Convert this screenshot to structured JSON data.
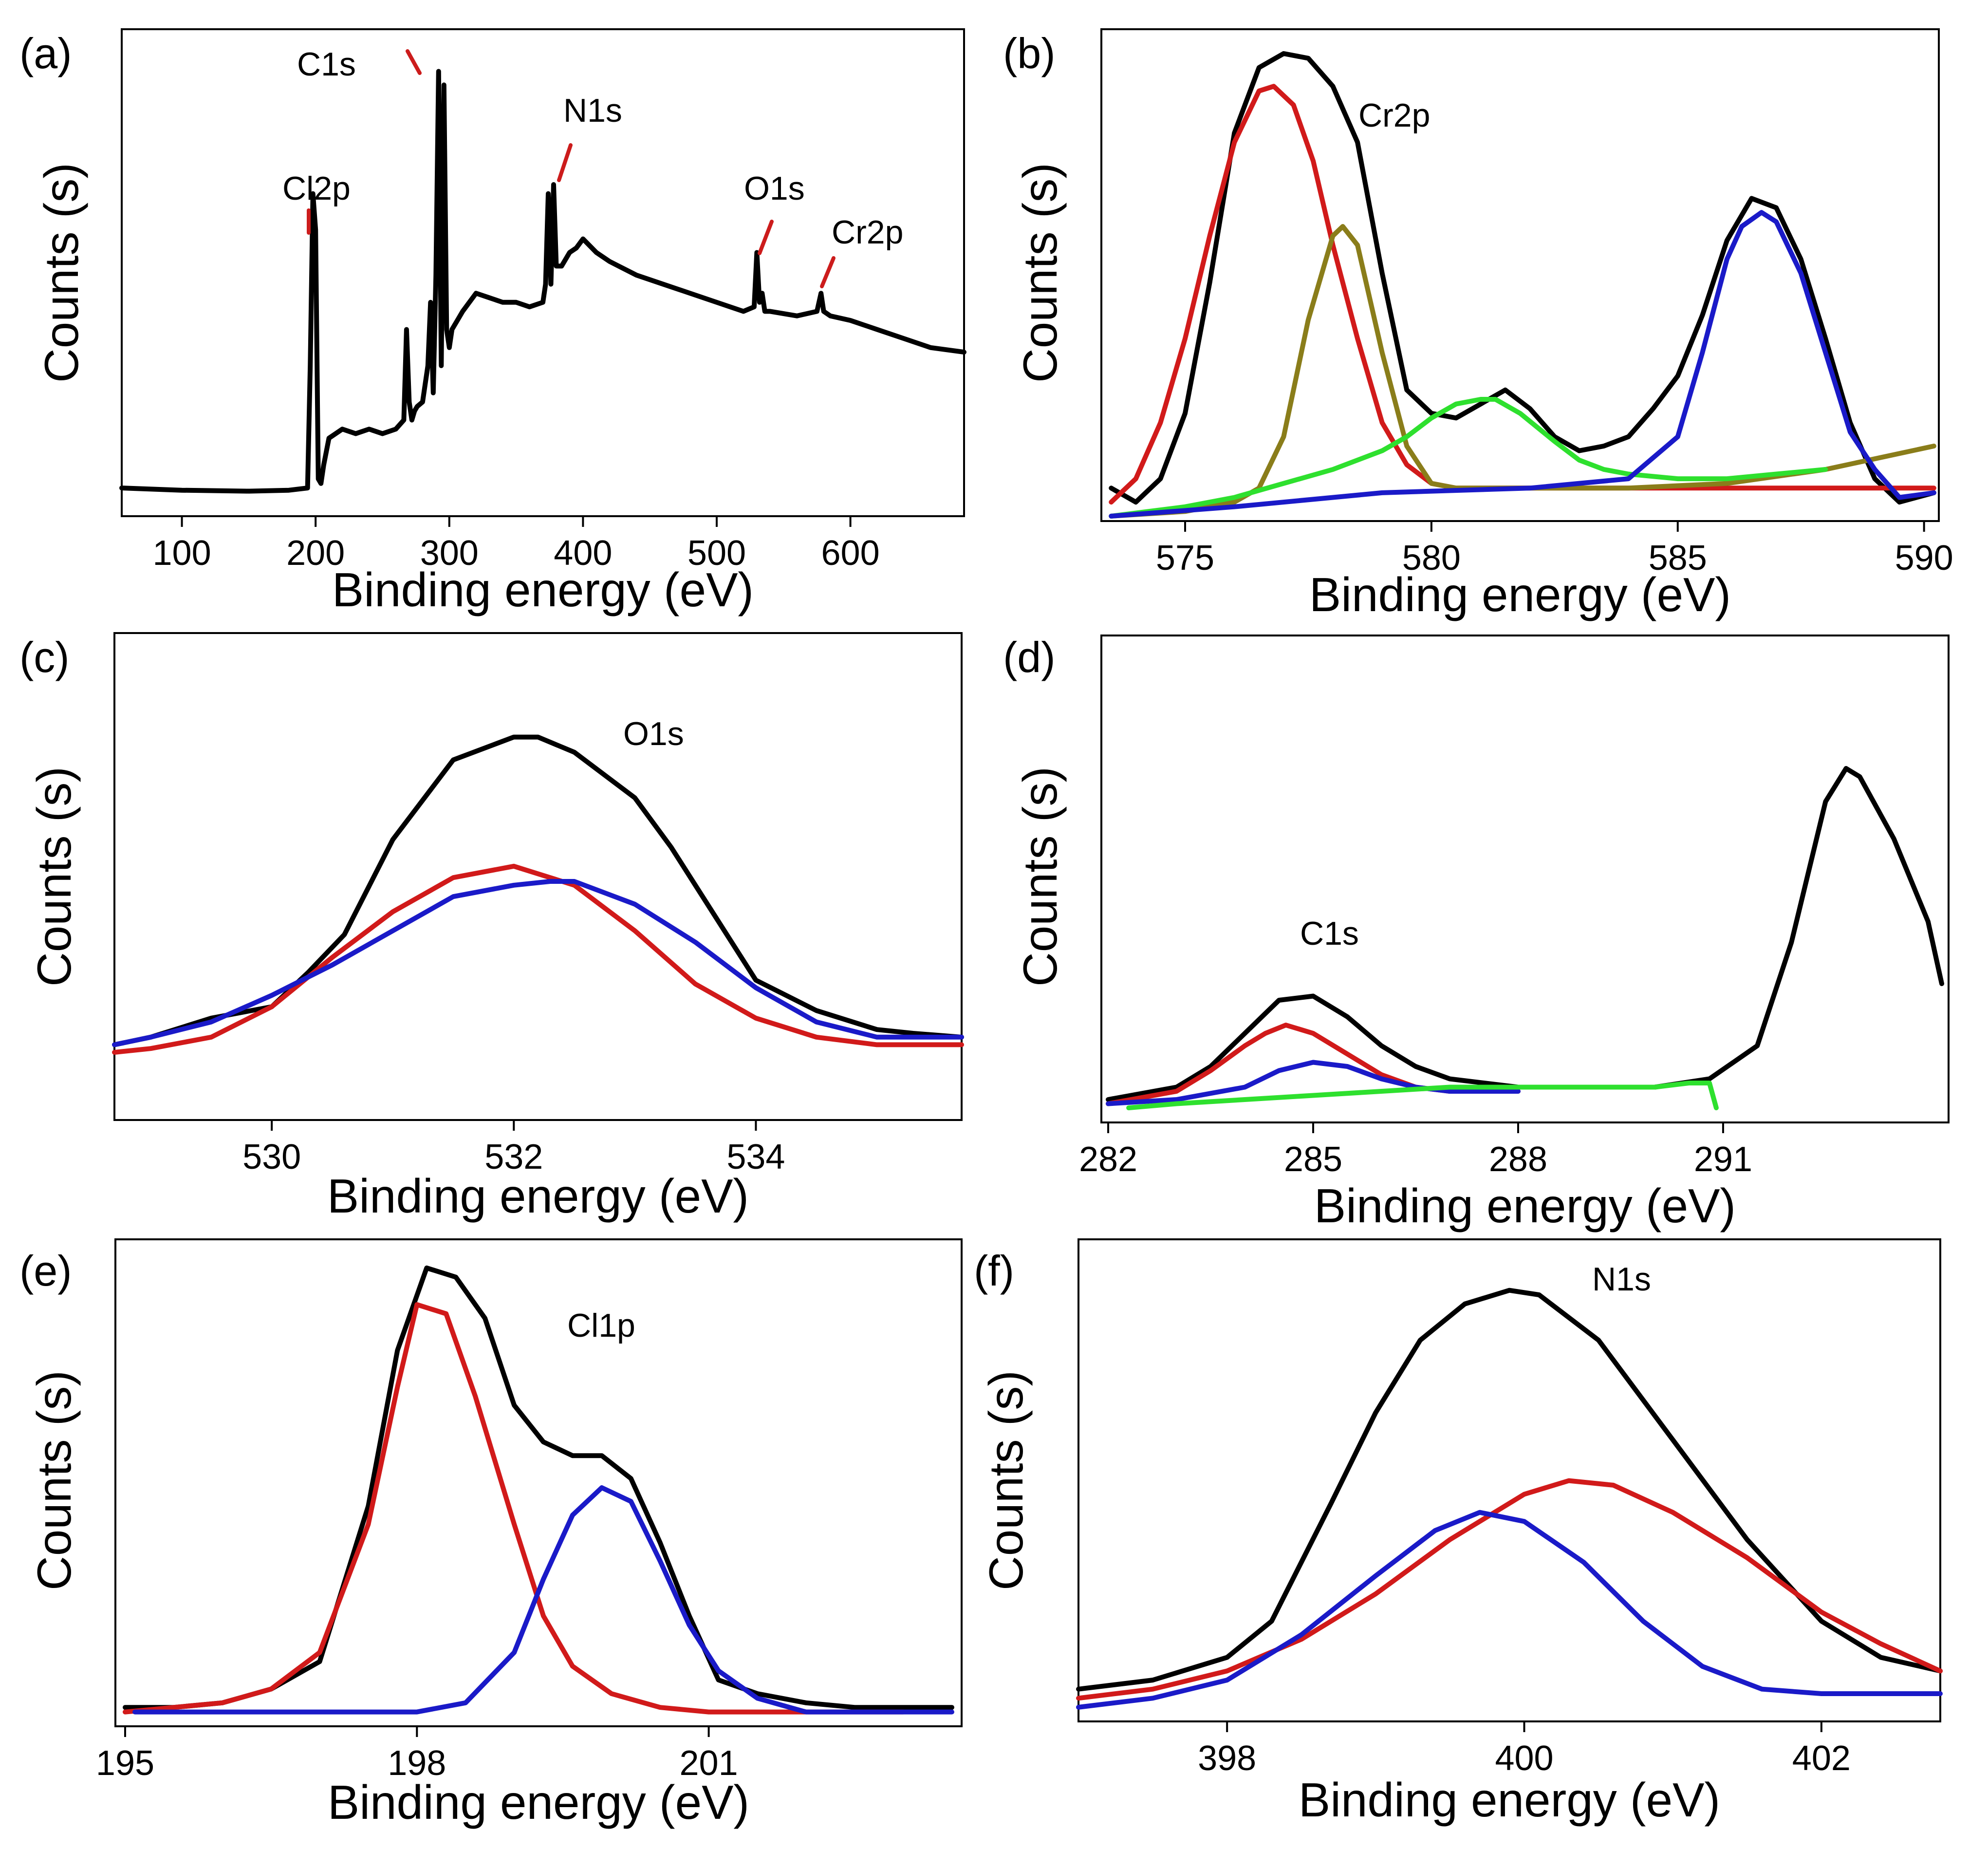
{
  "figure": {
    "axis_color": "#000000"
  },
  "chart_data": [
    {
      "id": "a",
      "type": "line",
      "panel_label": "(a)",
      "title": "",
      "xlabel": "Binding energy (eV)",
      "ylabel": "Counts (s)",
      "xlim": [
        55,
        685
      ],
      "ylim": [
        0,
        100
      ],
      "xticks": [
        100,
        200,
        300,
        400,
        500,
        600
      ],
      "xtick_labels": [
        "100",
        "200",
        "300",
        "400",
        "500",
        "600"
      ],
      "series": [
        {
          "name": "survey",
          "color": "#000000",
          "x": [
            55,
            100,
            150,
            180,
            194,
            196,
            198,
            200,
            202,
            204,
            206,
            210,
            220,
            230,
            240,
            250,
            260,
            266,
            268,
            270,
            272,
            274,
            276,
            280,
            284,
            286,
            288,
            290,
            292,
            294,
            296,
            298,
            300,
            302,
            306,
            310,
            320,
            330,
            340,
            350,
            360,
            370,
            372,
            374,
            376,
            378,
            380,
            384,
            390,
            395,
            400,
            410,
            420,
            440,
            460,
            480,
            500,
            520,
            528,
            530,
            532,
            534,
            536,
            540,
            560,
            575,
            578,
            580,
            585,
            600,
            620,
            640,
            660,
            685
          ],
          "y": [
            3,
            2.5,
            2.3,
            2.5,
            3,
            30,
            68,
            60,
            5,
            4,
            8,
            14,
            16,
            15,
            16,
            15,
            16,
            18,
            38,
            22,
            18,
            20,
            21,
            22,
            30,
            44,
            24,
            50,
            95,
            30,
            92,
            38,
            34,
            38,
            40,
            42,
            46,
            45,
            44,
            44,
            43,
            44,
            48,
            68,
            48,
            70,
            52,
            52,
            55,
            56,
            58,
            55,
            53,
            50,
            48,
            46,
            44,
            42,
            43,
            55,
            44,
            46,
            42,
            42,
            41,
            42,
            46,
            42,
            41,
            40,
            38,
            36,
            34,
            33
          ]
        }
      ],
      "annotations": [
        "Cl2p",
        "C1s",
        "N1s",
        "O1s",
        "Cr2p"
      ]
    },
    {
      "id": "b",
      "type": "line",
      "panel_label": "(b)",
      "title": "",
      "xlabel": "Binding energy (eV)",
      "ylabel": "Counts (s)",
      "xlim": [
        573.3,
        590.3
      ],
      "ylim": [
        0,
        100
      ],
      "xticks": [
        575,
        580,
        585,
        590
      ],
      "xtick_labels": [
        "575",
        "580",
        "585",
        "590"
      ],
      "series": [
        {
          "name": "raw",
          "color": "#000000",
          "x": [
            573.5,
            574,
            574.5,
            575,
            575.5,
            576,
            576.5,
            577,
            577.5,
            578,
            578.5,
            579,
            579.5,
            580,
            580.5,
            581,
            581.5,
            582,
            582.5,
            583,
            583.5,
            584,
            584.5,
            585,
            585.5,
            586,
            586.5,
            587,
            587.5,
            588,
            588.5,
            589,
            589.5,
            590.2
          ],
          "y": [
            6,
            3,
            8,
            22,
            50,
            82,
            96,
            99,
            98,
            92,
            80,
            52,
            27,
            22,
            21,
            24,
            27,
            23,
            17,
            14,
            15,
            17,
            23,
            30,
            43,
            59,
            68,
            66,
            55,
            38,
            20,
            8,
            3,
            5
          ]
        },
        {
          "name": "fit-1",
          "color": "#d11a1a",
          "x": [
            573.5,
            574,
            574.5,
            575,
            575.5,
            576,
            576.5,
            576.8,
            577.2,
            577.6,
            578,
            578.5,
            579,
            579.5,
            580,
            580.5,
            581,
            582,
            584,
            586,
            588,
            590.2
          ],
          "y": [
            3,
            8,
            20,
            38,
            60,
            80,
            91,
            92,
            88,
            76,
            58,
            38,
            20,
            11,
            7,
            6,
            6,
            6,
            6,
            6,
            6,
            6
          ]
        },
        {
          "name": "fit-2",
          "color": "#8a7d1a",
          "x": [
            573.5,
            575,
            576,
            576.5,
            577,
            577.5,
            578,
            578.2,
            578.5,
            579,
            579.5,
            580,
            580.5,
            581,
            582,
            584,
            586,
            588,
            590.2
          ],
          "y": [
            0,
            1,
            3,
            6,
            17,
            42,
            60,
            62,
            58,
            35,
            15,
            7,
            6,
            6,
            6,
            6,
            7,
            10,
            15
          ]
        },
        {
          "name": "fit-3",
          "color": "#2ee02e",
          "x": [
            573.5,
            575,
            576,
            577,
            578,
            579,
            579.5,
            580,
            580.5,
            581,
            581.3,
            581.8,
            582.5,
            583,
            583.5,
            584,
            585,
            586,
            587,
            588
          ],
          "y": [
            0,
            2,
            4,
            7,
            10,
            14,
            17,
            21,
            24,
            25,
            25,
            22,
            16,
            12,
            10,
            9,
            8,
            8,
            9,
            10
          ]
        },
        {
          "name": "fit-4",
          "color": "#1a1ac8",
          "x": [
            573.5,
            576,
            579,
            582,
            584,
            585,
            585.5,
            586,
            586.3,
            586.7,
            587,
            587.5,
            588,
            588.5,
            589,
            589.5,
            590.2
          ],
          "y": [
            0,
            2,
            5,
            6,
            8,
            17,
            35,
            55,
            62,
            65,
            63,
            52,
            35,
            18,
            10,
            4,
            5
          ]
        }
      ],
      "annotations": [
        "Cr2p"
      ]
    },
    {
      "id": "c",
      "type": "line",
      "panel_label": "(c)",
      "title": "",
      "xlabel": "Binding energy (eV)",
      "ylabel": "Counts (s)",
      "xlim": [
        528.7,
        535.7
      ],
      "ylim": [
        0,
        100
      ],
      "xticks": [
        530,
        532,
        534
      ],
      "xtick_labels": [
        "530",
        "532",
        "534"
      ],
      "series": [
        {
          "name": "raw",
          "color": "#000000",
          "x": [
            528.7,
            529,
            529.5,
            530,
            530.3,
            530.6,
            531,
            531.5,
            532,
            532.2,
            532.5,
            533,
            533.3,
            533.6,
            534,
            534.5,
            535,
            535.3,
            535.7
          ],
          "y": [
            7,
            9,
            14,
            17,
            26,
            36,
            61,
            82,
            88,
            88,
            84,
            72,
            59,
            44,
            24,
            16,
            11,
            10,
            9
          ]
        },
        {
          "name": "fit-1",
          "color": "#d11a1a",
          "x": [
            528.7,
            529,
            529.5,
            530,
            530.5,
            531,
            531.5,
            532,
            532.5,
            533,
            533.5,
            534,
            534.5,
            535,
            535.7
          ],
          "y": [
            5,
            6,
            9,
            17,
            30,
            42,
            51,
            54,
            49,
            37,
            23,
            14,
            9,
            7,
            7
          ]
        },
        {
          "name": "fit-2",
          "color": "#1a1ac8",
          "x": [
            528.7,
            529,
            529.5,
            530,
            530.5,
            531,
            531.5,
            532,
            532.3,
            532.5,
            533,
            533.5,
            534,
            534.5,
            535,
            535.7
          ],
          "y": [
            7,
            9,
            13,
            20,
            28,
            37,
            46,
            49,
            50,
            50,
            44,
            34,
            22,
            13,
            9,
            9
          ]
        }
      ],
      "annotations": [
        "O1s"
      ]
    },
    {
      "id": "d",
      "type": "line",
      "panel_label": "(d)",
      "title": "",
      "xlabel": "Binding energy (eV)",
      "ylabel": "Counts (s)",
      "xlim": [
        281.9,
        294.3
      ],
      "ylim": [
        0,
        100
      ],
      "xticks": [
        282,
        285,
        288,
        291
      ],
      "xtick_labels": [
        "282",
        "285",
        "288",
        "291"
      ],
      "series": [
        {
          "name": "raw",
          "color": "#000000",
          "x": [
            282,
            283,
            283.5,
            284,
            284.5,
            285,
            285.5,
            286,
            286.5,
            287,
            288,
            289,
            290,
            290.8,
            291.5,
            292,
            292.5,
            292.8,
            293,
            293.5,
            294,
            294.2
          ],
          "y": [
            2,
            5,
            10,
            18,
            26,
            27,
            22,
            15,
            10,
            7,
            5,
            5,
            5,
            7,
            15,
            40,
            74,
            82,
            80,
            65,
            45,
            30
          ]
        },
        {
          "name": "fit-1",
          "color": "#d11a1a",
          "x": [
            282,
            283,
            283.5,
            284,
            284.3,
            284.6,
            285,
            285.5,
            286,
            286.5,
            287,
            288
          ],
          "y": [
            1,
            4,
            9,
            15,
            18,
            20,
            18,
            13,
            8,
            5,
            4,
            4
          ]
        },
        {
          "name": "fit-2",
          "color": "#1a1ac8",
          "x": [
            282,
            283,
            284,
            284.5,
            285,
            285.5,
            286,
            286.5,
            287,
            288
          ],
          "y": [
            1,
            2,
            5,
            9,
            11,
            10,
            7,
            5,
            4,
            4
          ]
        },
        {
          "name": "baseline",
          "color": "#2ee02e",
          "x": [
            282.3,
            283,
            284,
            285,
            286,
            287,
            288,
            289,
            290,
            290.5,
            290.8,
            290.9
          ],
          "y": [
            0,
            1,
            2,
            3,
            4,
            5,
            5,
            5,
            5,
            6,
            6,
            0
          ]
        }
      ],
      "annotations": [
        "C1s"
      ]
    },
    {
      "id": "e",
      "type": "line",
      "panel_label": "(e)",
      "title": "",
      "xlabel": "Binding energy (eV)",
      "ylabel": "Counts (s)",
      "xlim": [
        194.9,
        203.6
      ],
      "ylim": [
        0,
        100
      ],
      "xticks": [
        195,
        198,
        201
      ],
      "xtick_labels": [
        "195",
        "198",
        "201"
      ],
      "series": [
        {
          "name": "raw",
          "color": "#000000",
          "x": [
            195,
            195.5,
            196,
            196.5,
            197,
            197.5,
            197.8,
            198.1,
            198.4,
            198.7,
            199,
            199.3,
            199.6,
            199.9,
            200.2,
            200.5,
            200.8,
            201.1,
            201.5,
            202,
            202.5,
            203,
            203.5
          ],
          "y": [
            2,
            2,
            3,
            6,
            12,
            46,
            80,
            98,
            96,
            87,
            68,
            60,
            57,
            57,
            52,
            38,
            22,
            8,
            5,
            3,
            2,
            2,
            2
          ]
        },
        {
          "name": "fit-1",
          "color": "#d11a1a",
          "x": [
            195,
            195.5,
            196,
            196.5,
            197,
            197.5,
            197.8,
            198,
            198.3,
            198.6,
            199,
            199.3,
            199.6,
            200,
            200.5,
            201,
            201.5,
            202,
            203
          ],
          "y": [
            1,
            2,
            3,
            6,
            14,
            42,
            72,
            90,
            88,
            70,
            42,
            22,
            11,
            5,
            2,
            1,
            1,
            1,
            1
          ]
        },
        {
          "name": "fit-2",
          "color": "#1a1ac8",
          "x": [
            195.1,
            197,
            198,
            198.5,
            199,
            199.3,
            199.6,
            199.9,
            200.2,
            200.5,
            200.8,
            201.1,
            201.5,
            202,
            203,
            203.5
          ],
          "y": [
            1,
            1,
            1,
            3,
            14,
            30,
            44,
            50,
            47,
            34,
            20,
            10,
            4,
            1,
            1,
            1
          ]
        }
      ],
      "annotations": [
        "Cl1p"
      ]
    },
    {
      "id": "f",
      "type": "line",
      "panel_label": "(f)",
      "title": "",
      "xlabel": "Binding energy (eV)",
      "ylabel": "Counts (s)",
      "xlim": [
        397.0,
        402.8
      ],
      "ylim": [
        0,
        100
      ],
      "xticks": [
        398,
        400,
        402
      ],
      "xtick_labels": [
        "398",
        "400",
        "402"
      ],
      "series": [
        {
          "name": "raw",
          "color": "#000000",
          "x": [
            397,
            397.5,
            398,
            398.3,
            398.7,
            399,
            399.3,
            399.6,
            399.9,
            400.1,
            400.5,
            401,
            401.5,
            402,
            402.4,
            402.8
          ],
          "y": [
            5,
            7,
            12,
            20,
            46,
            66,
            82,
            90,
            93,
            92,
            82,
            60,
            38,
            20,
            12,
            9
          ]
        },
        {
          "name": "fit-1",
          "color": "#d11a1a",
          "x": [
            397,
            397.5,
            398,
            398.5,
            399,
            399.5,
            400,
            400.3,
            400.6,
            401,
            401.5,
            402,
            402.4,
            402.8
          ],
          "y": [
            3,
            5,
            9,
            16,
            26,
            38,
            48,
            51,
            50,
            44,
            34,
            22,
            15,
            9
          ]
        },
        {
          "name": "fit-2",
          "color": "#1a1ac8",
          "x": [
            397,
            397.5,
            398,
            398.5,
            399,
            399.4,
            399.7,
            400,
            400.4,
            400.8,
            401.2,
            401.6,
            402,
            402.4,
            402.8
          ],
          "y": [
            1,
            3,
            7,
            17,
            30,
            40,
            44,
            42,
            33,
            20,
            10,
            5,
            4,
            4,
            4
          ]
        }
      ],
      "annotations": [
        "N1s"
      ]
    }
  ]
}
